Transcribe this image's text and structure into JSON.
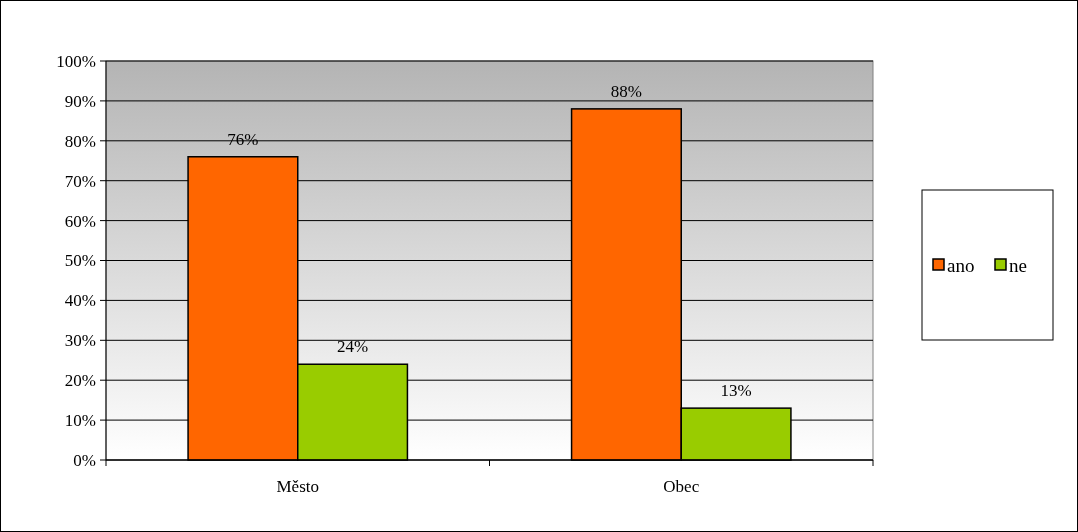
{
  "chart_data": {
    "type": "bar",
    "categories": [
      "Město",
      "Obec"
    ],
    "series": [
      {
        "name": "ano",
        "color": "#ff6600",
        "values": [
          76,
          88
        ],
        "value_labels": [
          "76%",
          "88%"
        ]
      },
      {
        "name": "ne",
        "color": "#99cc00",
        "values": [
          24,
          13
        ],
        "value_labels": [
          "24%",
          "13%"
        ]
      }
    ],
    "ylim": [
      0,
      100
    ],
    "yticks": [
      {
        "value": 0,
        "label": "0%"
      },
      {
        "value": 10,
        "label": "10%"
      },
      {
        "value": 20,
        "label": "20%"
      },
      {
        "value": 30,
        "label": "30%"
      },
      {
        "value": 40,
        "label": "40%"
      },
      {
        "value": 50,
        "label": "50%"
      },
      {
        "value": 60,
        "label": "60%"
      },
      {
        "value": 70,
        "label": "70%"
      },
      {
        "value": 80,
        "label": "80%"
      },
      {
        "value": 90,
        "label": "90%"
      },
      {
        "value": 100,
        "label": "100%"
      }
    ],
    "grid": "y",
    "legend": "right"
  }
}
